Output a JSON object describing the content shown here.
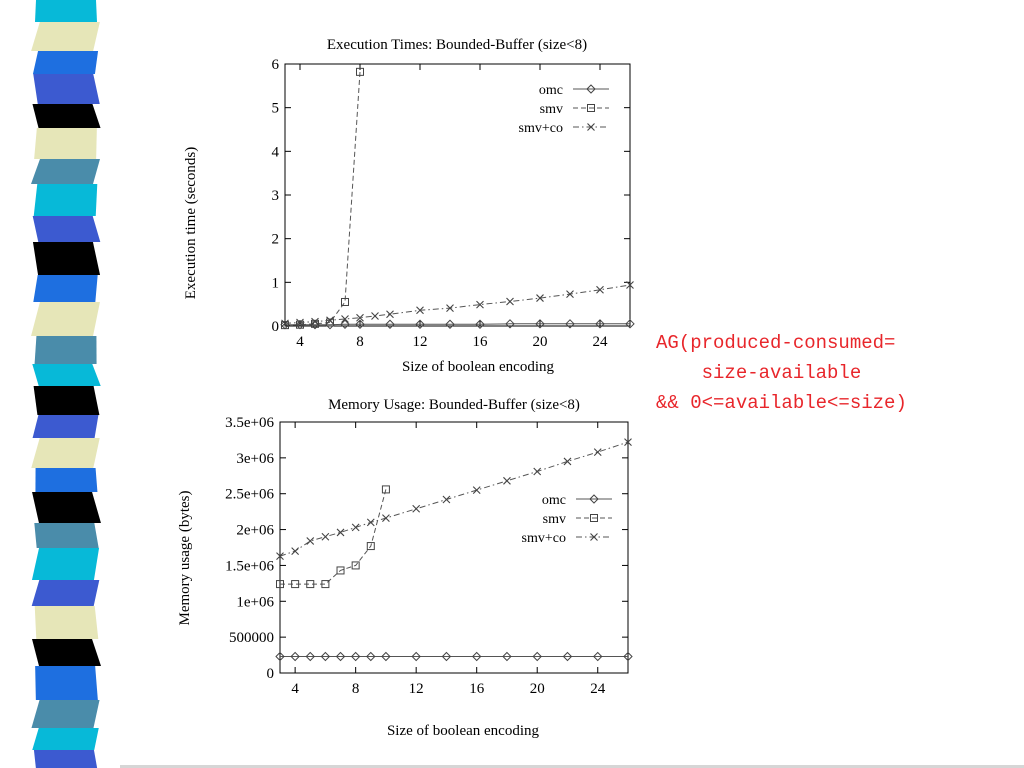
{
  "theme": {
    "formula_color": "#e8262b",
    "stripe_colors": [
      "#07b9d8",
      "#1e6fe0",
      "#3c5ad0",
      "#000000",
      "#e6e6b8",
      "#4a8caa"
    ]
  },
  "formula": {
    "line1": "AG(produced-consumed=",
    "line2": "    size-available",
    "line3": "&& 0<=available<=size)"
  },
  "chart_data": [
    {
      "type": "line",
      "title": "Execution Times: Bounded-Buffer (size<8)",
      "xlabel": "Size of boolean encoding",
      "ylabel": "Execution time (seconds)",
      "xlim": [
        3,
        26
      ],
      "ylim": [
        0,
        6
      ],
      "xticks": [
        4,
        8,
        12,
        16,
        20,
        24
      ],
      "xtick_labels": [
        "4",
        "8",
        "12",
        "16",
        "20",
        "24"
      ],
      "yticks": [
        0,
        1,
        2,
        3,
        4,
        5,
        6
      ],
      "ytick_labels": [
        "0",
        "1",
        "2",
        "3",
        "4",
        "5",
        "6"
      ],
      "legend_position": "top-right",
      "grid": false,
      "series": [
        {
          "name": "omc",
          "marker": "diamond",
          "dash": "solid",
          "x": [
            3,
            4,
            5,
            6,
            7,
            8,
            10,
            12,
            14,
            16,
            18,
            20,
            22,
            24,
            26
          ],
          "y": [
            0.03,
            0.03,
            0.03,
            0.03,
            0.04,
            0.04,
            0.04,
            0.04,
            0.04,
            0.04,
            0.05,
            0.05,
            0.05,
            0.05,
            0.05
          ]
        },
        {
          "name": "smv",
          "marker": "square",
          "dash": "dashed",
          "x": [
            3,
            4,
            5,
            6,
            7,
            8
          ],
          "y": [
            0.02,
            0.03,
            0.05,
            0.08,
            0.55,
            5.82
          ]
        },
        {
          "name": "smv+co",
          "marker": "cross",
          "dash": "dashdot",
          "x": [
            3,
            4,
            5,
            6,
            7,
            8,
            9,
            10,
            12,
            14,
            16,
            18,
            20,
            22,
            24,
            26
          ],
          "y": [
            0.06,
            0.08,
            0.1,
            0.13,
            0.16,
            0.19,
            0.23,
            0.27,
            0.36,
            0.41,
            0.49,
            0.56,
            0.64,
            0.73,
            0.83,
            0.94
          ]
        }
      ]
    },
    {
      "type": "line",
      "title": "Memory Usage: Bounded-Buffer (size<8)",
      "xlabel": "Size of boolean encoding",
      "ylabel": "Memory usage (bytes)",
      "xlim": [
        3,
        26
      ],
      "ylim": [
        0,
        3500000
      ],
      "xticks": [
        4,
        8,
        12,
        16,
        20,
        24
      ],
      "xtick_labels": [
        "4",
        "8",
        "12",
        "16",
        "20",
        "24"
      ],
      "yticks": [
        0,
        500000,
        1000000,
        1500000,
        2000000,
        2500000,
        3000000,
        3500000
      ],
      "ytick_labels": [
        "0",
        "500000",
        "1e+06",
        "1.5e+06",
        "2e+06",
        "2.5e+06",
        "3e+06",
        "3.5e+06"
      ],
      "legend_position": "right",
      "grid": false,
      "series": [
        {
          "name": "omc",
          "marker": "diamond",
          "dash": "solid",
          "x": [
            3,
            4,
            5,
            6,
            7,
            8,
            9,
            10,
            12,
            14,
            16,
            18,
            20,
            22,
            24,
            26
          ],
          "y": [
            230000,
            230000,
            230000,
            230000,
            230000,
            230000,
            230000,
            230000,
            230000,
            230000,
            230000,
            230000,
            230000,
            230000,
            230000,
            230000
          ]
        },
        {
          "name": "smv",
          "marker": "square",
          "dash": "dashed",
          "x": [
            3,
            4,
            5,
            6,
            7,
            8,
            9,
            10
          ],
          "y": [
            1240000,
            1240000,
            1240000,
            1240000,
            1430000,
            1500000,
            1770000,
            2560000
          ]
        },
        {
          "name": "smv+co",
          "marker": "cross",
          "dash": "dashdot",
          "x": [
            3,
            4,
            5,
            6,
            7,
            8,
            9,
            10,
            12,
            14,
            16,
            18,
            20,
            22,
            24,
            26
          ],
          "y": [
            1630000,
            1700000,
            1840000,
            1900000,
            1960000,
            2030000,
            2100000,
            2160000,
            2290000,
            2420000,
            2550000,
            2680000,
            2810000,
            2950000,
            3080000,
            3220000
          ]
        }
      ]
    }
  ]
}
